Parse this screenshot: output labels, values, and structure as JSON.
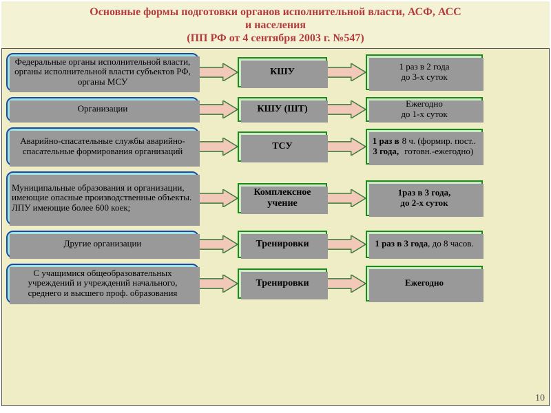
{
  "header": {
    "title_line1": "Основные формы подготовки органов исполнительной власти, АСФ,  АСС",
    "title_line2": "и населения",
    "subtitle": "(ПП РФ от 4 сентября 2003 г. №547)",
    "background_color": "#f4f2d5",
    "text_color": "#b33c3c",
    "fontsize": 16
  },
  "body": {
    "background_color": "#eeedc5",
    "page_number": "10"
  },
  "arrow": {
    "fill": "#f2c9b8",
    "stroke": "#3a7a3a",
    "width": 56,
    "height": 26
  },
  "left_box_style": {
    "fill": "#9ee3e3",
    "border": "#1a4aa6",
    "border_width": 2,
    "radius": 10,
    "fontsize": 13,
    "color": "#000000"
  },
  "mid_box_style": {
    "fill": "#cde9c5",
    "border": "#1a8a1a",
    "border_width": 2,
    "fontsize": 14,
    "color": "#000000"
  },
  "right_box_style": {
    "fill": "#cde9c5",
    "border": "#1a8a1a",
    "border_width": 2,
    "fontsize": 13,
    "color": "#000000"
  },
  "rows": [
    {
      "left": "Федеральные органы исполнительной власти, органы исполнительной власти субъектов РФ, органы МСУ",
      "mid": "КШУ",
      "right": "1 раз в 2 года\nдо  3-х  суток",
      "h": 56,
      "left_align": "center"
    },
    {
      "left": "Организации",
      "mid": "КШУ (ШТ)",
      "right": "Ежегодно\nдо 1-х  суток",
      "h": 36,
      "left_align": "center"
    },
    {
      "left": "Аварийно-спасательные службы аварийно-спасательные формирования организаций",
      "mid": "ТСУ",
      "right": "1 раз в 3 года,\n8 ч. (формир. пост.. готовн.-ежегодно)",
      "h": 56,
      "left_align": "center",
      "right_bold_first": true
    },
    {
      "left": "Муниципальные образования и организации, имеющие опасные производственные объекты.\n ЛПУ имеющие более 600 коек;",
      "mid": "Комплексное учение",
      "right": "1раз в 3 года,\nдо 2-х суток",
      "h": 78,
      "left_align": "left",
      "right_bold": true
    },
    {
      "left": "Другие организации",
      "mid": "Тренировки",
      "right": "1 раз в 3 года,  до 8 часов.",
      "h": 40,
      "left_align": "center",
      "right_bold_partial": true
    },
    {
      "left": "С учащимися общеобразовательных учреждений и учреждений начального, среднего и высшего проф. образования",
      "mid": "Тренировки",
      "right": "Ежегодно",
      "h": 58,
      "left_align": "center",
      "right_bold": true
    }
  ]
}
